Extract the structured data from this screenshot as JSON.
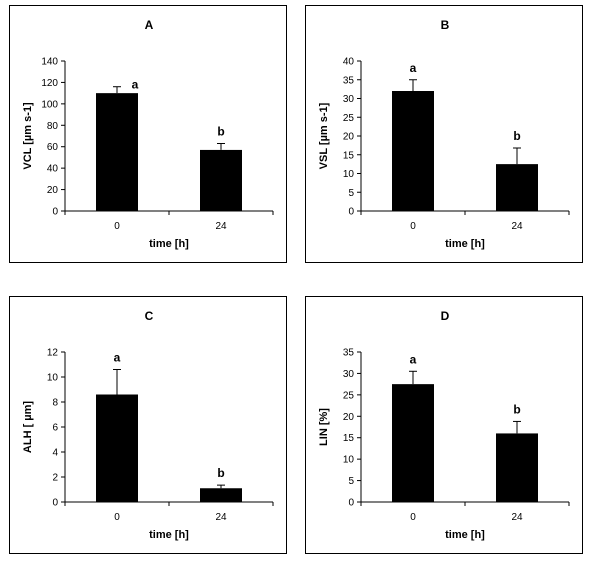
{
  "chart_data": [
    {
      "type": "bar",
      "title": "A",
      "categories": [
        "0",
        "24"
      ],
      "values": [
        110,
        57
      ],
      "error_upper": [
        116,
        63
      ],
      "annotations": [
        "a",
        "b"
      ],
      "xlabel": "time [h]",
      "ylabel": "VCL [µm s-1]",
      "ylim": [
        0,
        140
      ],
      "yticks": [
        "0",
        "20",
        "40",
        "60",
        "80",
        "100",
        "120",
        "140"
      ],
      "grid": false,
      "legend": "none"
    },
    {
      "type": "bar",
      "title": "B",
      "categories": [
        "0",
        "24"
      ],
      "values": [
        32,
        12.5
      ],
      "error_upper": [
        35,
        16.8
      ],
      "annotations": [
        "a",
        "b"
      ],
      "xlabel": "time [h]",
      "ylabel": "VSL [µm s-1]",
      "ylim": [
        0,
        40
      ],
      "yticks": [
        "0",
        "5",
        "10",
        "15",
        "20",
        "25",
        "30",
        "35",
        "40"
      ],
      "grid": false,
      "legend": "none"
    },
    {
      "type": "bar",
      "title": "C",
      "categories": [
        "0",
        "24"
      ],
      "values": [
        8.6,
        1.1
      ],
      "error_upper": [
        10.6,
        1.35
      ],
      "annotations": [
        "a",
        "b"
      ],
      "xlabel": "time [h]",
      "ylabel": "ALH [ µm]",
      "ylim": [
        0,
        12
      ],
      "yticks": [
        "0",
        "2",
        "4",
        "6",
        "8",
        "10",
        "12"
      ],
      "grid": false,
      "legend": "none"
    },
    {
      "type": "bar",
      "title": "D",
      "categories": [
        "0",
        "24"
      ],
      "values": [
        27.5,
        16
      ],
      "error_upper": [
        30.5,
        18.8
      ],
      "annotations": [
        "a",
        "b"
      ],
      "xlabel": "time [h]",
      "ylabel": "LIN [%]",
      "ylim": [
        0,
        35
      ],
      "yticks": [
        "0",
        "5",
        "10",
        "15",
        "20",
        "25",
        "30",
        "35"
      ],
      "grid": false,
      "legend": "none"
    }
  ]
}
